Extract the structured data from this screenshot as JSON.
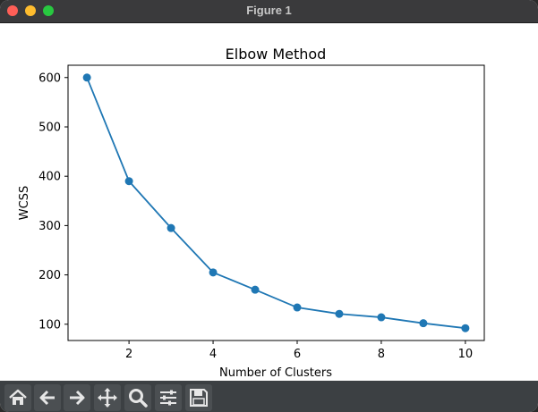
{
  "window": {
    "title": "Figure 1"
  },
  "chart_data": {
    "type": "line",
    "title": "Elbow Method",
    "xlabel": "Number of Clusters",
    "ylabel": "WCSS",
    "x": [
      1,
      2,
      3,
      4,
      5,
      6,
      7,
      8,
      9,
      10
    ],
    "series": [
      {
        "values": [
          600,
          390,
          295,
          205,
          170,
          134,
          121,
          114,
          102,
          92
        ]
      }
    ],
    "xticks": [
      "2",
      "4",
      "6",
      "8",
      "10"
    ],
    "yticks": [
      "100",
      "200",
      "300",
      "400",
      "500",
      "600"
    ],
    "xlim": [
      0.55,
      10.45
    ],
    "ylim": [
      67,
      625
    ],
    "grid": false,
    "markers": true,
    "line_color": "#1f77b4"
  },
  "toolbar": {
    "buttons": [
      {
        "name": "home-icon",
        "icon": "home"
      },
      {
        "name": "back-icon",
        "icon": "arrow-left"
      },
      {
        "name": "forward-icon",
        "icon": "arrow-right"
      },
      {
        "name": "pan-icon",
        "icon": "move"
      },
      {
        "name": "zoom-icon",
        "icon": "magnifier"
      },
      {
        "name": "configure-subplots-icon",
        "icon": "sliders"
      },
      {
        "name": "save-icon",
        "icon": "floppy"
      }
    ]
  }
}
